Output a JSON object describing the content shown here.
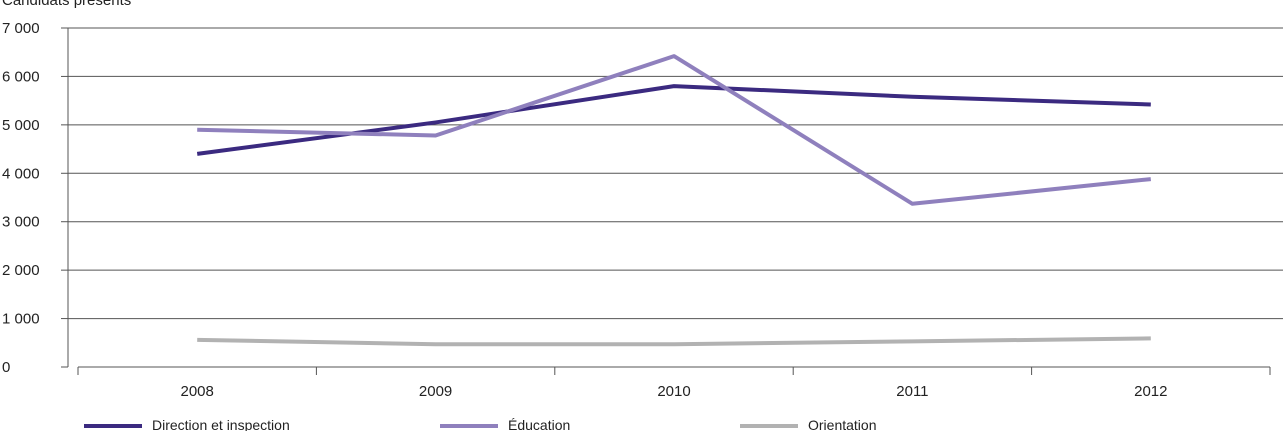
{
  "chart_data": {
    "type": "line",
    "title": "",
    "ylabel": "Candidats présents",
    "xlabel": "",
    "categories": [
      "2008",
      "2009",
      "2010",
      "2011",
      "2012"
    ],
    "ylim": [
      0,
      7000
    ],
    "yticks": [
      0,
      1000,
      2000,
      3000,
      4000,
      5000,
      6000,
      7000
    ],
    "ytick_labels": [
      "0",
      "1 000",
      "2 000",
      "3 000",
      "4 000",
      "5 000",
      "6 000",
      "7 000"
    ],
    "grid": true,
    "legend_position": "bottom",
    "series": [
      {
        "name": "Direction et inspection",
        "color": "#3b2a80",
        "values": [
          4400,
          5050,
          5800,
          5580,
          5420
        ]
      },
      {
        "name": "Éducation",
        "color": "#8f80bd",
        "values": [
          4900,
          4780,
          6420,
          3370,
          3880
        ]
      },
      {
        "name": "Orientation",
        "color": "#b2b2b2",
        "values": [
          560,
          470,
          470,
          530,
          590
        ]
      }
    ]
  }
}
